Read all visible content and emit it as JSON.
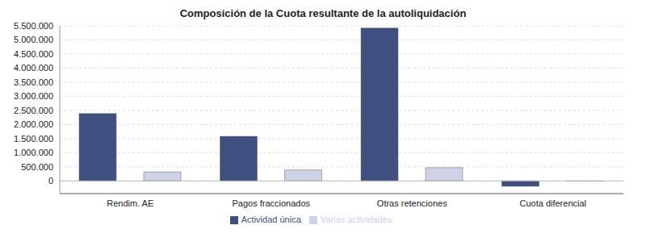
{
  "chart_data": {
    "type": "bar",
    "title": "Composición de la Cuota resultante de la autoliquidación",
    "categories": [
      "Rendim. AE",
      "Pagos fraccionados",
      "Otras retenciones",
      "Cuota diferencial"
    ],
    "series": [
      {
        "name": "Actividad única",
        "color": "#3f4f80",
        "values": [
          2390000,
          1580000,
          5420000,
          -190000
        ]
      },
      {
        "name": "Varias actividades",
        "color": "#ced2e6",
        "values": [
          320000,
          390000,
          470000,
          -10000
        ]
      }
    ],
    "ylim": [
      -450000,
      5500000
    ],
    "yticks": [
      0,
      {
        "value": 500000,
        "label": "500.000"
      },
      {
        "value": 1000000,
        "label": "1.000.000"
      },
      {
        "value": 1500000,
        "label": "1.500.000"
      },
      {
        "value": 2000000,
        "label": "2.000.000"
      },
      {
        "value": 2500000,
        "label": "2.500.000"
      },
      {
        "value": 3000000,
        "label": "3.000.000"
      },
      {
        "value": 3500000,
        "label": "3.500.000"
      },
      {
        "value": 4000000,
        "label": "4.000.000"
      },
      {
        "value": 4500000,
        "label": "4.500.000"
      },
      {
        "value": 5000000,
        "label": "5.000.000"
      },
      {
        "value": 5500000,
        "label": "5.500.000"
      }
    ],
    "grid": true,
    "legend": "bottom"
  }
}
